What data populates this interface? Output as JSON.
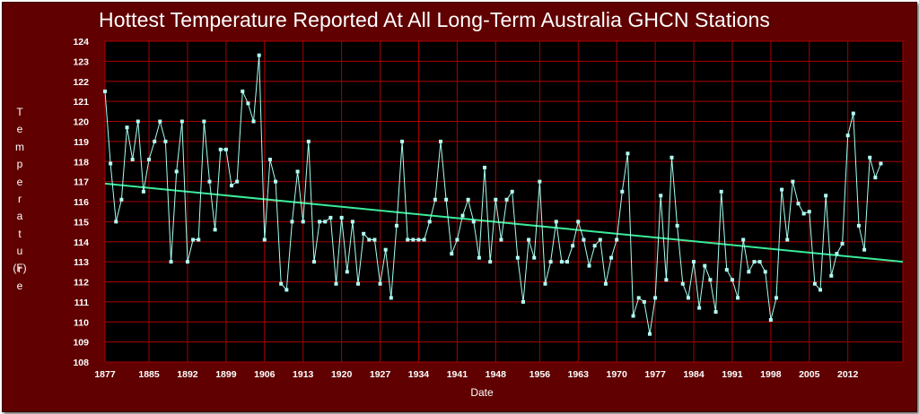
{
  "chart_data": {
    "type": "line",
    "title": "Hottest Temperature Reported At All Long-Term Australia GHCN Stations",
    "xlabel": "Date",
    "ylabel": "Temperature",
    "yunit": "(F)",
    "ylim": [
      108,
      124
    ],
    "xlim": [
      1877,
      2022
    ],
    "yticks": [
      108,
      109,
      110,
      111,
      112,
      113,
      114,
      115,
      116,
      117,
      118,
      119,
      120,
      121,
      122,
      123,
      124
    ],
    "xticks": [
      "1877",
      "1885",
      "1892",
      "1899",
      "1906",
      "1913",
      "1920",
      "1927",
      "1934",
      "1941",
      "1948",
      "1956",
      "1963",
      "1970",
      "1977",
      "1984",
      "1991",
      "1998",
      "2005",
      "2012"
    ],
    "grid": true,
    "series": [
      {
        "x": [
          1877,
          1878,
          1879,
          1880,
          1881,
          1882,
          1883,
          1884,
          1885,
          1886,
          1887,
          1888,
          1889,
          1890,
          1891,
          1892,
          1893,
          1894,
          1895,
          1896,
          1897,
          1898,
          1899,
          1900,
          1901,
          1902,
          1903,
          1904,
          1905,
          1906,
          1907,
          1908,
          1909,
          1910,
          1911,
          1912,
          1913,
          1914,
          1915,
          1916,
          1917,
          1918,
          1919,
          1920,
          1921,
          1922,
          1923,
          1924,
          1925,
          1926,
          1927,
          1928,
          1929,
          1930,
          1931,
          1932,
          1933,
          1934,
          1935,
          1936,
          1937,
          1938,
          1939,
          1940,
          1941,
          1942,
          1943,
          1944,
          1945,
          1946,
          1947,
          1948,
          1949,
          1950,
          1951,
          1952,
          1953,
          1954,
          1955,
          1956,
          1957,
          1958,
          1959,
          1960,
          1961,
          1962,
          1963,
          1964,
          1965,
          1966,
          1967,
          1968,
          1969,
          1970,
          1971,
          1972,
          1973,
          1974,
          1975,
          1976,
          1977,
          1978,
          1979,
          1980,
          1981,
          1982,
          1983,
          1984,
          1985,
          1986,
          1987,
          1988,
          1989,
          1990,
          1991,
          1992,
          1993,
          1994,
          1995,
          1996,
          1997,
          1998,
          1999,
          2000,
          2001,
          2002,
          2003,
          2004,
          2005,
          2006,
          2007,
          2008,
          2009,
          2010,
          2011,
          2012,
          2013,
          2014,
          2015,
          2016,
          2017,
          2018
        ],
        "values": [
          121.5,
          117.9,
          115.0,
          116.1,
          119.7,
          118.1,
          120.0,
          116.5,
          118.1,
          119.0,
          120.0,
          119.0,
          113.0,
          117.5,
          120.0,
          113.0,
          114.1,
          114.1,
          120.0,
          117.0,
          114.6,
          118.6,
          118.6,
          116.8,
          117.0,
          121.5,
          120.9,
          120.0,
          123.3,
          114.1,
          118.1,
          117.0,
          111.9,
          111.6,
          115.0,
          117.5,
          115.0,
          119.0,
          113.0,
          115.0,
          115.0,
          115.2,
          111.9,
          115.2,
          112.5,
          115.0,
          111.9,
          114.4,
          114.1,
          114.1,
          111.9,
          113.6,
          111.2,
          114.8,
          119.0,
          114.1,
          114.1,
          114.1,
          114.1,
          115.0,
          116.1,
          119.0,
          116.1,
          113.4,
          114.1,
          115.3,
          116.1,
          115.0,
          113.2,
          117.7,
          113.0,
          116.1,
          114.1,
          116.1,
          116.5,
          113.2,
          111.0,
          114.1,
          113.2,
          117.0,
          111.9,
          113.0,
          115.0,
          113.0,
          113.0,
          113.8,
          115.0,
          114.1,
          112.8,
          113.8,
          114.1,
          111.9,
          113.2,
          114.1,
          116.5,
          118.4,
          110.3,
          111.2,
          111.0,
          109.4,
          111.2,
          116.3,
          112.1,
          118.2,
          114.8,
          111.9,
          111.2,
          113.0,
          110.7,
          112.8,
          112.1,
          110.5,
          116.5,
          112.6,
          112.1,
          111.2,
          114.1,
          112.5,
          113.0,
          113.0,
          112.5,
          110.1,
          111.2,
          116.6,
          114.1,
          117.0,
          115.9,
          115.4,
          115.5,
          111.9,
          111.6,
          116.3,
          112.3,
          113.4,
          113.9,
          119.3,
          120.4,
          114.8,
          113.6,
          118.2,
          117.2,
          117.9
        ]
      }
    ],
    "trend": {
      "y_start": 116.9,
      "y_end": 113.0
    },
    "colors": {
      "background": "#600000",
      "plot": "#000000",
      "grid": "#a80000",
      "series": "#a6fff0",
      "marker": "#b2fff5",
      "trend": "#3aec9a",
      "text": "#ffffff"
    }
  }
}
